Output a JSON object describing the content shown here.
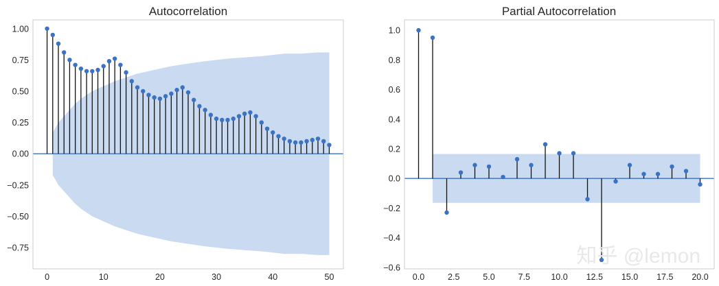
{
  "chart_data": [
    {
      "type": "stem",
      "title": "Autocorrelation",
      "xlim": [
        -2.5,
        52.5
      ],
      "ylim": [
        -0.92,
        1.07
      ],
      "xticks": [
        0,
        10,
        20,
        30,
        40,
        50
      ],
      "xtick_labels": [
        "0",
        "10",
        "20",
        "30",
        "40",
        "50"
      ],
      "yticks": [
        1.0,
        0.75,
        0.5,
        0.25,
        0.0,
        -0.25,
        -0.5,
        -0.75
      ],
      "ytick_labels": [
        "1.00",
        "0.75",
        "0.50",
        "0.25",
        "0.00",
        "−0.25",
        "−0.50",
        "−0.75"
      ],
      "grid": false,
      "lags": [
        0,
        1,
        2,
        3,
        4,
        5,
        6,
        7,
        8,
        9,
        10,
        11,
        12,
        13,
        14,
        15,
        16,
        17,
        18,
        19,
        20,
        21,
        22,
        23,
        24,
        25,
        26,
        27,
        28,
        29,
        30,
        31,
        32,
        33,
        34,
        35,
        36,
        37,
        38,
        39,
        40,
        41,
        42,
        43,
        44,
        45,
        46,
        47,
        48,
        49,
        50
      ],
      "values": [
        1.0,
        0.95,
        0.88,
        0.81,
        0.75,
        0.71,
        0.68,
        0.66,
        0.66,
        0.67,
        0.7,
        0.74,
        0.76,
        0.71,
        0.65,
        0.58,
        0.53,
        0.5,
        0.47,
        0.45,
        0.44,
        0.46,
        0.48,
        0.51,
        0.53,
        0.49,
        0.43,
        0.38,
        0.35,
        0.31,
        0.28,
        0.27,
        0.27,
        0.28,
        0.3,
        0.32,
        0.33,
        0.3,
        0.25,
        0.2,
        0.17,
        0.14,
        0.12,
        0.1,
        0.09,
        0.09,
        0.1,
        0.11,
        0.12,
        0.1,
        0.07
      ],
      "confidence_band": {
        "lags": [
          1,
          2,
          3,
          4,
          5,
          6,
          7,
          8,
          9,
          10,
          12,
          14,
          16,
          18,
          20,
          22,
          25,
          28,
          30,
          32,
          35,
          38,
          40,
          42,
          45,
          48,
          50
        ],
        "upper": [
          0.17,
          0.25,
          0.3,
          0.35,
          0.4,
          0.44,
          0.47,
          0.5,
          0.52,
          0.54,
          0.58,
          0.61,
          0.64,
          0.66,
          0.68,
          0.7,
          0.72,
          0.74,
          0.75,
          0.76,
          0.77,
          0.78,
          0.79,
          0.8,
          0.8,
          0.81,
          0.81
        ],
        "lower": [
          -0.17,
          -0.25,
          -0.3,
          -0.35,
          -0.4,
          -0.44,
          -0.47,
          -0.5,
          -0.52,
          -0.54,
          -0.58,
          -0.61,
          -0.64,
          -0.66,
          -0.68,
          -0.7,
          -0.72,
          -0.74,
          -0.75,
          -0.76,
          -0.77,
          -0.78,
          -0.79,
          -0.8,
          -0.8,
          -0.81,
          -0.81
        ]
      },
      "colors": {
        "marker": "#3A72C4",
        "stem": "#111111",
        "zero_line": "#3A72C4",
        "band": "#CADAF0"
      }
    },
    {
      "type": "stem",
      "title": "Partial Autocorrelation",
      "xlim": [
        -1.0,
        21.0
      ],
      "ylim": [
        -0.61,
        1.07
      ],
      "xticks": [
        0,
        2.5,
        5,
        7.5,
        10,
        12.5,
        15,
        17.5,
        20
      ],
      "xtick_labels": [
        "0.0",
        "2.5",
        "5.0",
        "7.5",
        "10.0",
        "12.5",
        "15.0",
        "17.5",
        "20.0"
      ],
      "yticks": [
        1.0,
        0.8,
        0.6,
        0.4,
        0.2,
        0.0,
        -0.2,
        -0.4,
        -0.6
      ],
      "ytick_labels": [
        "1.0",
        "0.8",
        "0.6",
        "0.4",
        "0.2",
        "0.0",
        "−0.2",
        "−0.4",
        "−0.6"
      ],
      "grid": false,
      "lags": [
        0,
        1,
        2,
        3,
        4,
        5,
        6,
        7,
        8,
        9,
        10,
        11,
        12,
        13,
        14,
        15,
        16,
        17,
        18,
        19,
        20
      ],
      "values": [
        1.0,
        0.95,
        -0.23,
        0.04,
        0.09,
        0.08,
        0.01,
        0.13,
        0.09,
        0.23,
        0.17,
        0.17,
        -0.14,
        -0.55,
        -0.02,
        0.09,
        0.03,
        0.03,
        0.08,
        0.05,
        -0.04
      ],
      "confidence_band": {
        "lags": [
          1,
          20
        ],
        "upper": [
          0.165,
          0.165
        ],
        "lower": [
          -0.165,
          -0.165
        ]
      },
      "colors": {
        "marker": "#3A72C4",
        "stem": "#111111",
        "zero_line": "#3A72C4",
        "band": "#CADAF0"
      }
    }
  ],
  "watermark": {
    "text": "知乎 @lemon"
  }
}
